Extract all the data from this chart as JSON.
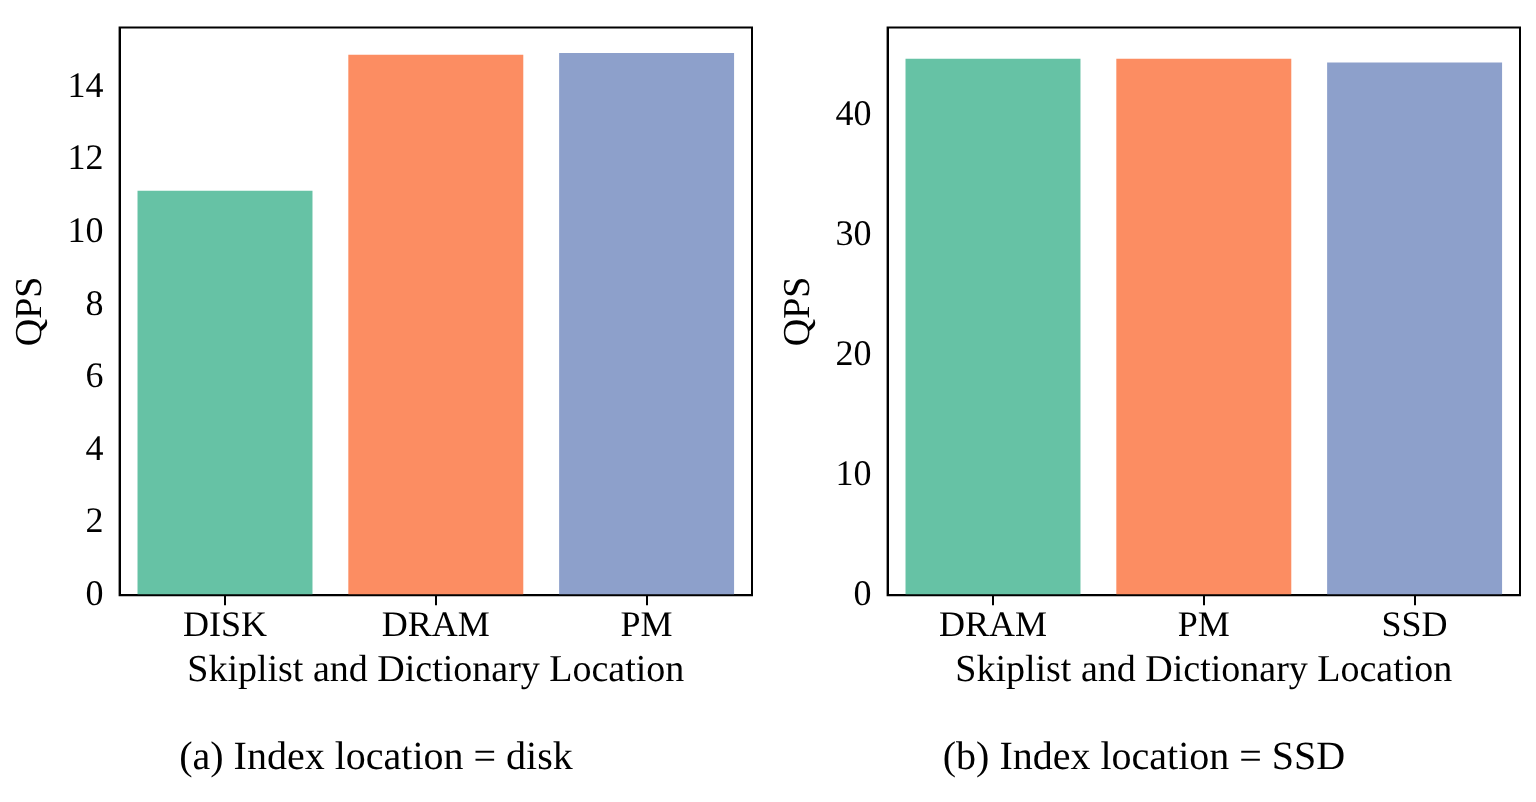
{
  "chart_data": [
    {
      "type": "bar",
      "title": "(a) Index location = disk",
      "xlabel": "Skiplist and Dictionary Location",
      "ylabel": "QPS",
      "categories": [
        "DISK",
        "DRAM",
        "PM"
      ],
      "values": [
        11.15,
        14.9,
        14.95
      ],
      "colors": [
        "#66c2a5",
        "#fc8d62",
        "#8da0cb"
      ],
      "ylim": [
        0,
        15.65
      ],
      "yticks": [
        0,
        2,
        4,
        6,
        8,
        10,
        12,
        14
      ],
      "grid": false,
      "legend": false
    },
    {
      "type": "bar",
      "title": "(b) Index location = SSD",
      "xlabel": "Skiplist and Dictionary Location",
      "ylabel": "QPS",
      "categories": [
        "DRAM",
        "PM",
        "SSD"
      ],
      "values": [
        44.7,
        44.7,
        44.4
      ],
      "colors": [
        "#66c2a5",
        "#fc8d62",
        "#8da0cb"
      ],
      "ylim": [
        0,
        47.3
      ],
      "yticks": [
        0,
        10,
        20,
        30,
        40
      ],
      "grid": false,
      "legend": false
    }
  ]
}
